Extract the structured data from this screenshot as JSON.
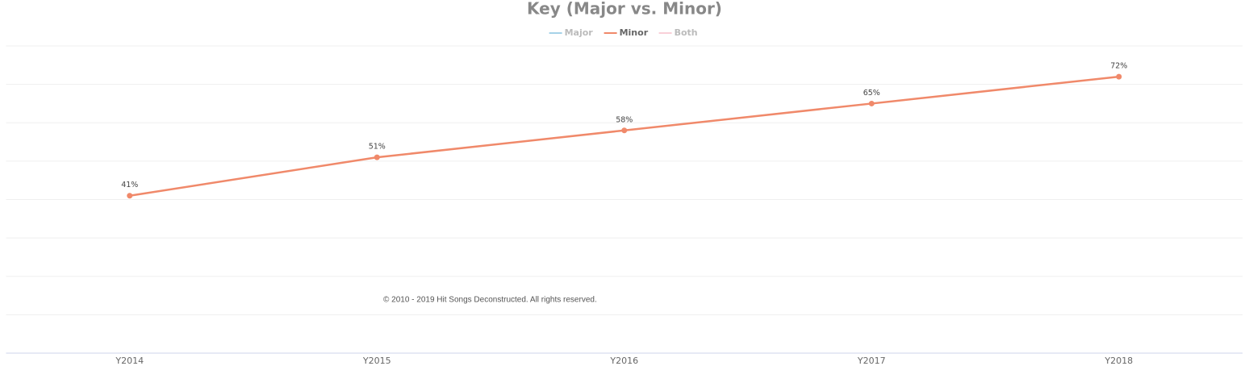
{
  "chart_data": {
    "type": "line",
    "title": "Key (Major vs. Minor)",
    "categories": [
      "Y2014",
      "Y2015",
      "Y2016",
      "Y2017",
      "Y2018"
    ],
    "series": [
      {
        "name": "Major",
        "color": "#a6d2e8",
        "hidden": true,
        "values": [
          null,
          null,
          null,
          null,
          null
        ]
      },
      {
        "name": "Minor",
        "color": "#f0896a",
        "hidden": false,
        "values": [
          41,
          51,
          58,
          65,
          72
        ],
        "value_labels": [
          "41%",
          "51%",
          "58%",
          "65%",
          "72%"
        ]
      },
      {
        "name": "Both",
        "color": "#f9d0d8",
        "hidden": true,
        "values": [
          null,
          null,
          null,
          null,
          null
        ]
      }
    ],
    "ylim": [
      0,
      80
    ],
    "yticks": [
      0,
      10,
      20,
      30,
      40,
      50,
      60,
      70,
      80
    ],
    "grid": true,
    "legend": "top",
    "annotation": "© 2010 - 2019 Hit Songs Deconstructed. All rights reserved."
  }
}
